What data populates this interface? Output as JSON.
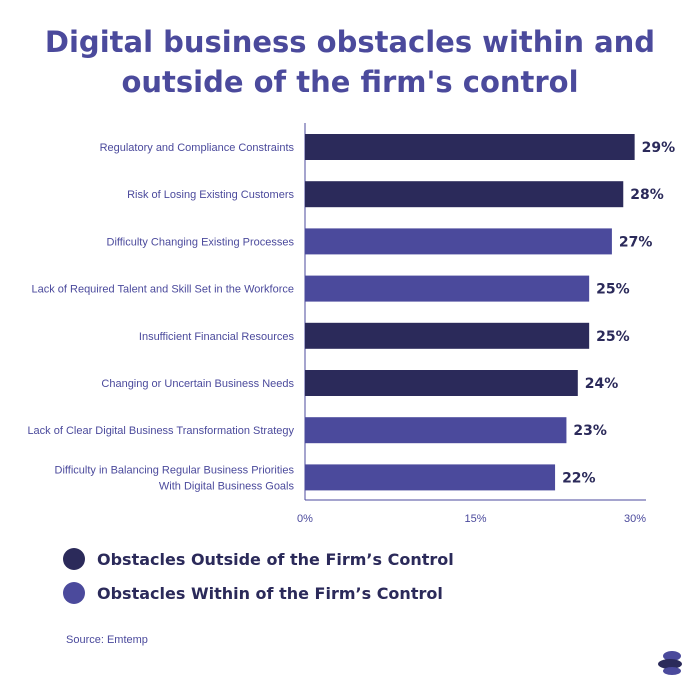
{
  "chart_data": {
    "type": "bar",
    "orientation": "horizontal",
    "title_lines": [
      "Digital business obstacles within and",
      "outside of the firm's control"
    ],
    "categories": [
      [
        "Regulatory and Compliance Constraints"
      ],
      [
        "Risk of Losing Existing Customers"
      ],
      [
        "Difficulty Changing Existing Processes"
      ],
      [
        "Lack of Required Talent and Skill Set in the Workforce"
      ],
      [
        "Insufficient Financial Resources"
      ],
      [
        "Changing or Uncertain Business Needs"
      ],
      [
        "Lack of Clear Digital Business Transformation Strategy"
      ],
      [
        "Difficulty in Balancing Regular Business Priorities",
        "With Digital Business Goals"
      ]
    ],
    "values": [
      29,
      28,
      27,
      25,
      25,
      24,
      23,
      22
    ],
    "value_labels": [
      "29%",
      "28%",
      "27%",
      "25%",
      "25%",
      "24%",
      "23%",
      "22%"
    ],
    "groups": [
      "outside",
      "outside",
      "within",
      "within",
      "outside",
      "outside",
      "within",
      "within"
    ],
    "xlim": [
      0,
      30
    ],
    "ticks": [
      0,
      15,
      30
    ],
    "tick_labels": [
      "0%",
      "15%",
      "30%"
    ],
    "grid": false,
    "legend": [
      {
        "key": "outside",
        "label": "Obstacles Outside of the Firm’s Control",
        "color": "#2b2a5a"
      },
      {
        "key": "within",
        "label": "Obstacles Within of the Firm’s Control",
        "color": "#4b4a9c"
      }
    ],
    "source": "Source: Emtemp"
  },
  "colors": {
    "outside": "#2b2a5a",
    "within": "#4b4a9c",
    "axis": "#4b4a9c"
  }
}
